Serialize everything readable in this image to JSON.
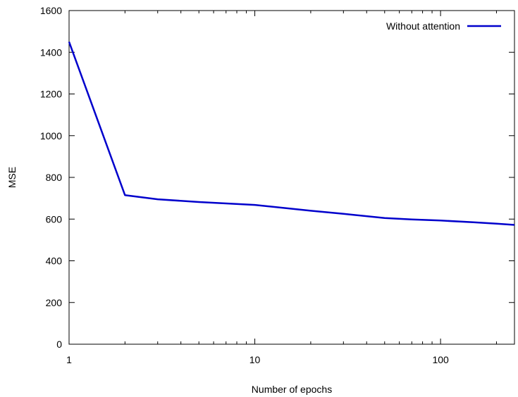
{
  "chart_data": {
    "type": "line",
    "xlabel": "Number of epochs",
    "ylabel": "MSE",
    "xscale": "log",
    "xlim": [
      1,
      250
    ],
    "ylim": [
      0,
      1600
    ],
    "xticks": [
      1,
      10,
      100
    ],
    "xtick_labels": [
      "1",
      "10",
      "100"
    ],
    "yticks": [
      0,
      200,
      400,
      600,
      800,
      1000,
      1200,
      1400,
      1600
    ],
    "ytick_labels": [
      "0",
      "200",
      "400",
      "600",
      "800",
      "1000",
      "1200",
      "1400",
      "1600"
    ],
    "grid": false,
    "legend_position": "top-right",
    "series": [
      {
        "name": "Without attention",
        "color": "#0000cc",
        "x": [
          1,
          2,
          3,
          5,
          10,
          20,
          30,
          50,
          70,
          100,
          150,
          200,
          250
        ],
        "y": [
          1450,
          715,
          695,
          682,
          668,
          640,
          625,
          605,
          598,
          593,
          585,
          578,
          572
        ]
      }
    ]
  }
}
